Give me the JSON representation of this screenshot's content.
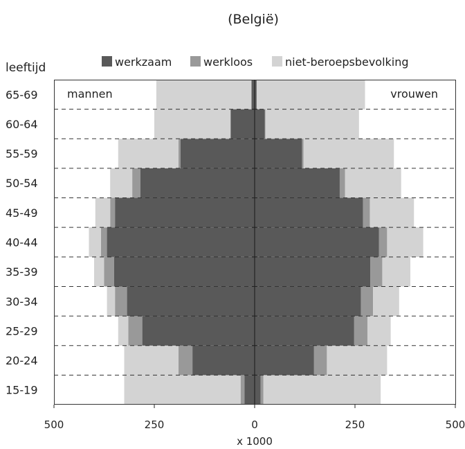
{
  "chart_data": {
    "type": "bar",
    "subtitle": "(België)",
    "y_axis_label": "leeftijd",
    "xlabel": "x 1000",
    "xlim": [
      -500,
      500
    ],
    "x_tick_labels": [
      "500",
      "250",
      "0",
      "250",
      "500"
    ],
    "left_group_label": "mannen",
    "right_group_label": "vrouwen",
    "categories": [
      "15-19",
      "20-24",
      "25-29",
      "30-34",
      "35-39",
      "40-44",
      "45-49",
      "50-54",
      "55-59",
      "60-64",
      "65-69"
    ],
    "series": [
      {
        "name": "werkzaam",
        "color": "#595959",
        "mannen": [
          25,
          155,
          280,
          318,
          350,
          368,
          348,
          285,
          185,
          60,
          8
        ],
        "vrouwen": [
          15,
          148,
          248,
          265,
          288,
          310,
          270,
          212,
          118,
          25,
          5
        ]
      },
      {
        "name": "werkloos",
        "color": "#999999",
        "mannen": [
          10,
          35,
          35,
          30,
          25,
          15,
          12,
          20,
          5,
          0,
          0
        ],
        "vrouwen": [
          7,
          32,
          33,
          30,
          30,
          20,
          17,
          13,
          4,
          2,
          0
        ]
      },
      {
        "name": "niet-beroepsbevolking",
        "color": "#d3d3d3",
        "mannen": [
          290,
          135,
          25,
          20,
          25,
          30,
          37,
          55,
          150,
          190,
          237
        ],
        "vrouwen": [
          292,
          150,
          58,
          65,
          70,
          90,
          110,
          140,
          225,
          233,
          270
        ]
      }
    ]
  }
}
